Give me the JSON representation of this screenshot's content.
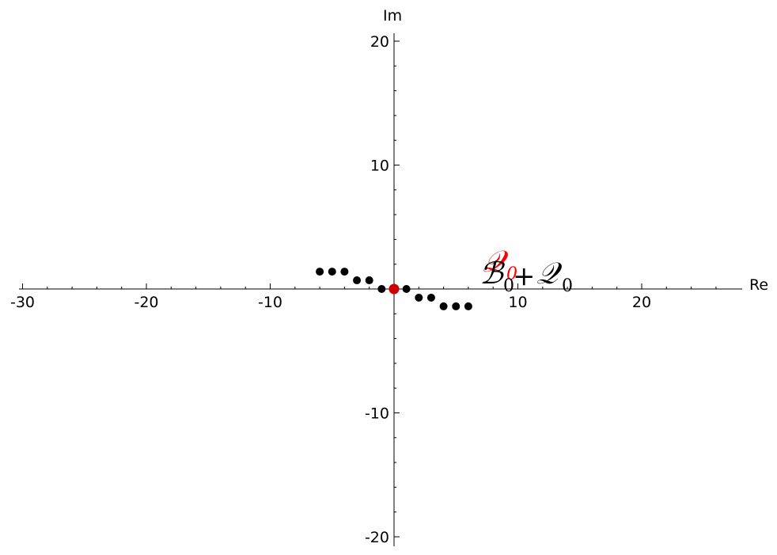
{
  "chart_data": {
    "type": "scatter",
    "title": "",
    "xlabel": "Re",
    "ylabel": "Im",
    "xlim": [
      -30,
      27
    ],
    "ylim": [
      -20,
      20
    ],
    "xticks": [
      -30,
      -20,
      -10,
      10,
      20
    ],
    "yticks": [
      20,
      10,
      -10,
      -20
    ],
    "xtick_labels": [
      "-30",
      "-20",
      "-10",
      "10",
      "20"
    ],
    "ytick_labels": [
      "20",
      "10",
      "-10",
      "-20"
    ],
    "grid": false,
    "series": [
      {
        "color": "#000000",
        "points": [
          {
            "x": -6,
            "y": 1.4
          },
          {
            "x": -5,
            "y": 1.4
          },
          {
            "x": -4,
            "y": 1.4
          },
          {
            "x": -3,
            "y": 0.7
          },
          {
            "x": -2,
            "y": 0.7
          },
          {
            "x": -1,
            "y": 0
          },
          {
            "x": 1,
            "y": 0
          },
          {
            "x": 2,
            "y": -0.7
          },
          {
            "x": 3,
            "y": -0.7
          },
          {
            "x": 4,
            "y": -1.4
          },
          {
            "x": 5,
            "y": -1.4
          },
          {
            "x": 6,
            "y": -1.4
          }
        ]
      },
      {
        "color": "#cc0000",
        "points": [
          {
            "x": 0,
            "y": 0
          }
        ]
      }
    ],
    "annotations": {
      "red_label": {
        "main": "𝒬",
        "sub": "0",
        "color": "#ff0000"
      },
      "black_label": {
        "main": "ℬ",
        "sub1": "0",
        "plus": "+",
        "main2": "𝒬",
        "sub2": "0",
        "color": "#000000"
      }
    }
  }
}
